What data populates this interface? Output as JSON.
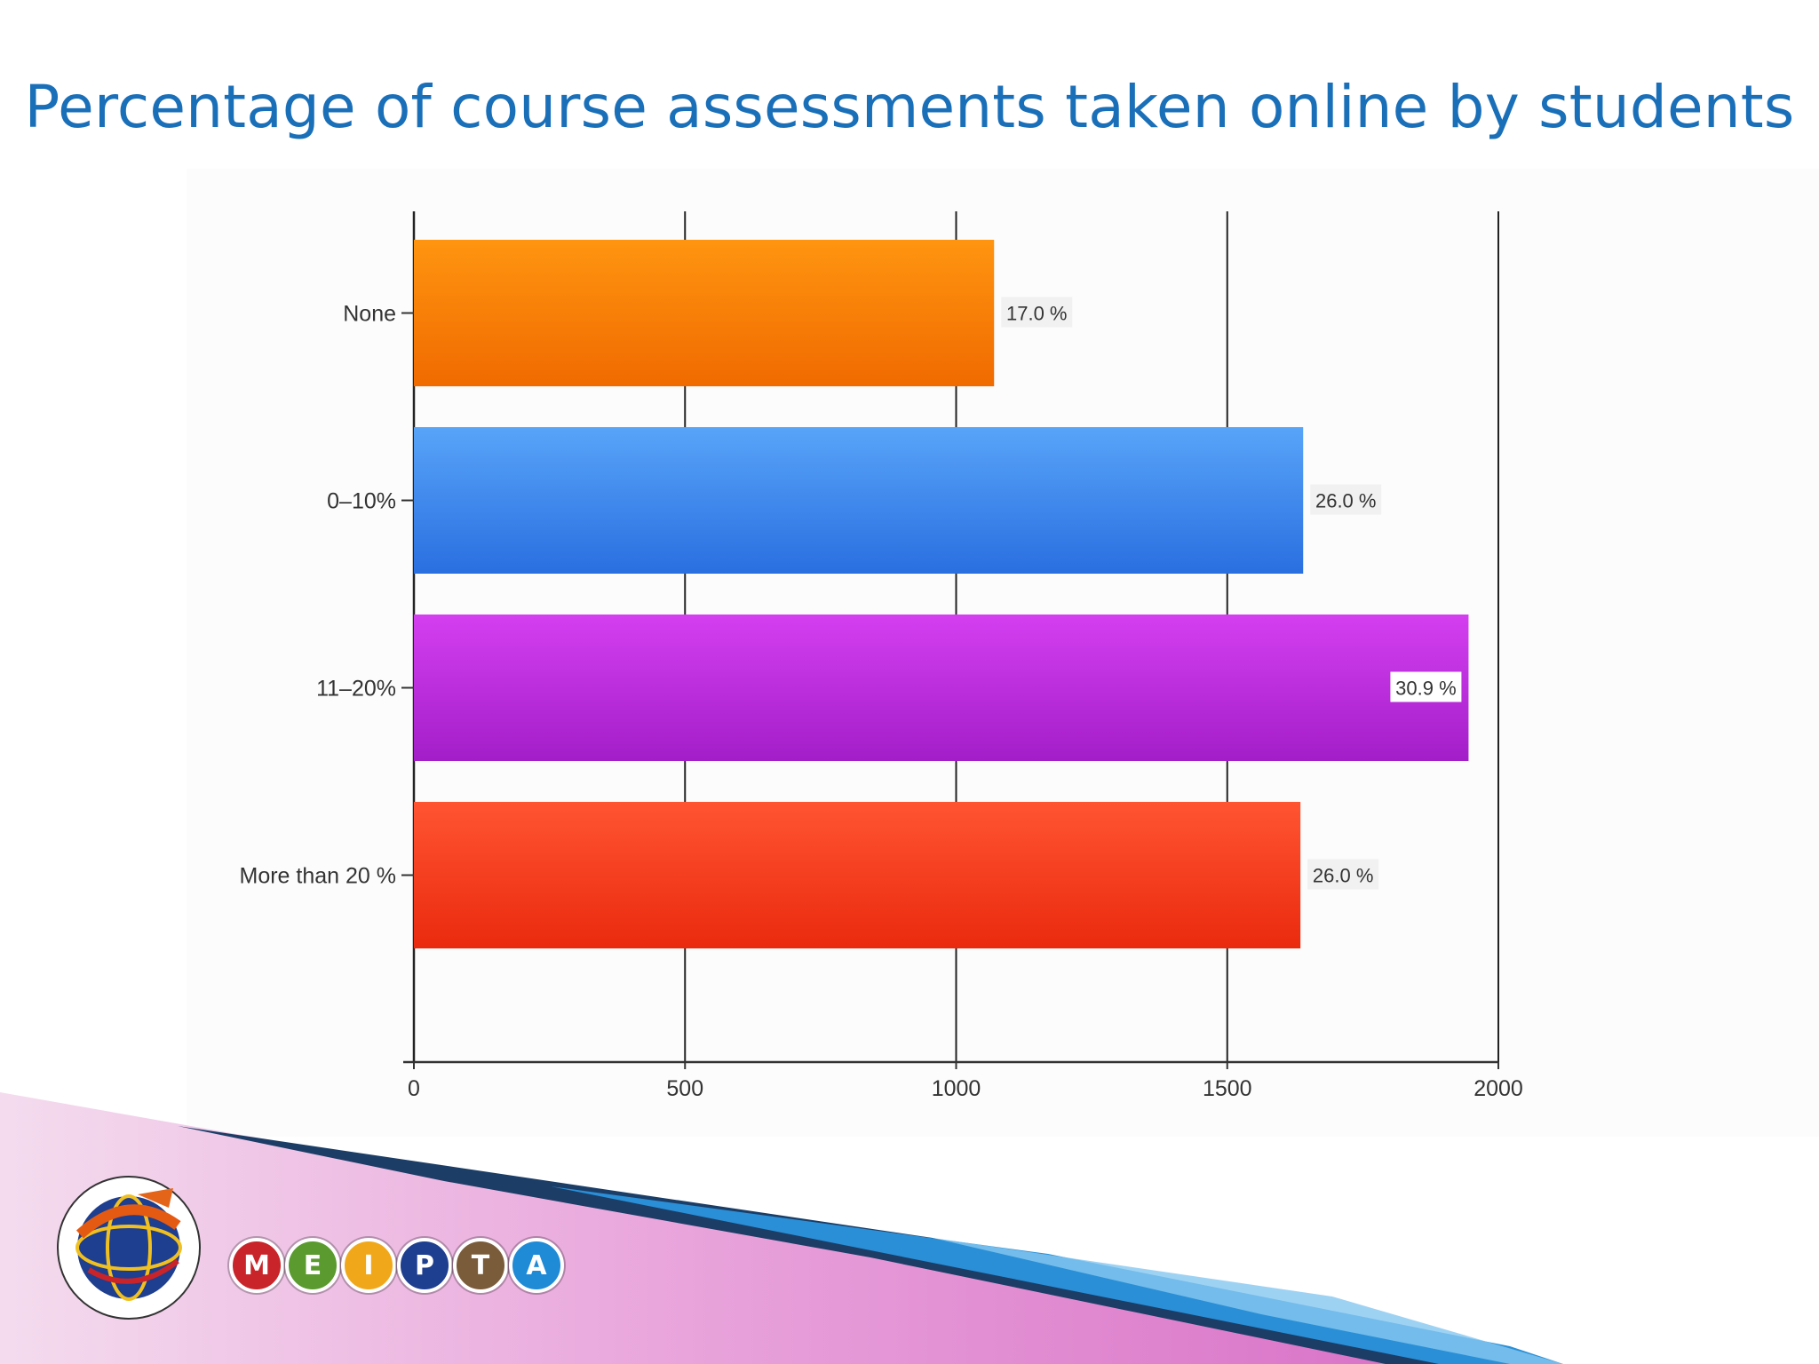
{
  "slide": {
    "title": "Percentage of course assessments taken online by students"
  },
  "chart_data": {
    "type": "bar",
    "orientation": "horizontal",
    "categories": [
      "None",
      "0–10%",
      "11–20%",
      "More than 20 %"
    ],
    "values": [
      1070,
      1640,
      1945,
      1635
    ],
    "data_labels": [
      "17.0 %",
      "26.0 %",
      "30.9 %",
      "26.0 %"
    ],
    "colors": [
      {
        "top": "#ff9510",
        "bottom": "#f06a00"
      },
      {
        "top": "#58a4f9",
        "bottom": "#2a6fe0"
      },
      {
        "top": "#d43ff0",
        "bottom": "#a31ec8"
      },
      {
        "top": "#ff5432",
        "bottom": "#ea2a0e"
      }
    ],
    "xlim": [
      0,
      2000
    ],
    "xticks": [
      0,
      500,
      1000,
      1500,
      2000
    ],
    "xtick_labels": [
      "0",
      "500",
      "1000",
      "1500",
      "2000"
    ],
    "grid": true
  },
  "logo": {
    "letters": [
      "M",
      "E",
      "I",
      "P",
      "T",
      "A"
    ],
    "colors": [
      "#c8242a",
      "#5a9a2e",
      "#f0a81a",
      "#1e3e8f",
      "#7a5c3a",
      "#1f8ad6"
    ]
  }
}
